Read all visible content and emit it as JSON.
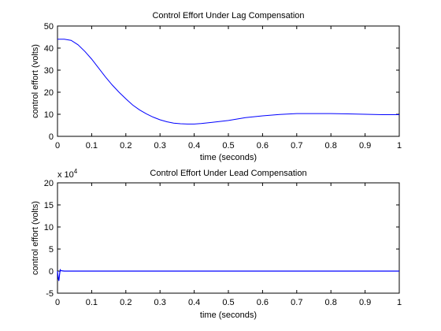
{
  "chart_data": [
    {
      "type": "line",
      "title": "Control Effort Under Lag Compensation",
      "xlabel": "time (seconds)",
      "ylabel": "control effort (volts)",
      "xlim": [
        0,
        1
      ],
      "ylim": [
        0,
        50
      ],
      "xticks": [
        "0",
        "0.1",
        "0.2",
        "0.3",
        "0.4",
        "0.5",
        "0.6",
        "0.7",
        "0.8",
        "0.9",
        "1"
      ],
      "yticks": [
        "0",
        "10",
        "20",
        "30",
        "40",
        "50"
      ],
      "grid": false,
      "line_color": "#0000ff",
      "series": [
        {
          "x": [
            0,
            0.02,
            0.04,
            0.06,
            0.08,
            0.1,
            0.12,
            0.14,
            0.16,
            0.18,
            0.2,
            0.22,
            0.24,
            0.26,
            0.28,
            0.3,
            0.32,
            0.34,
            0.36,
            0.38,
            0.4,
            0.42,
            0.45,
            0.5,
            0.55,
            0.6,
            0.65,
            0.7,
            0.75,
            0.8,
            0.85,
            0.9,
            0.95,
            1.0
          ],
          "y": [
            44,
            44,
            43.5,
            41.5,
            38.5,
            35,
            31,
            27,
            23.3,
            20,
            17,
            14.2,
            12,
            10.2,
            8.7,
            7.5,
            6.6,
            6.0,
            5.7,
            5.6,
            5.6,
            5.8,
            6.3,
            7.2,
            8.5,
            9.3,
            9.9,
            10.3,
            10.3,
            10.3,
            10.2,
            10.0,
            9.8,
            9.8
          ]
        }
      ]
    },
    {
      "type": "line",
      "title": "Control Effort Under Lead Compensation",
      "xlabel": "time (seconds)",
      "ylabel": "control effort (volts)",
      "xlim": [
        0,
        1
      ],
      "ylim": [
        -5,
        20
      ],
      "y_multiplier": "x 10",
      "y_exponent": "4",
      "xticks": [
        "0",
        "0.1",
        "0.2",
        "0.3",
        "0.4",
        "0.5",
        "0.6",
        "0.7",
        "0.8",
        "0.9",
        "1"
      ],
      "yticks": [
        "-5",
        "0",
        "5",
        "10",
        "15",
        "20"
      ],
      "grid": false,
      "line_color": "#0000ff",
      "series": [
        {
          "x": [
            0,
            0.002,
            0.004,
            0.006,
            0.008,
            0.01,
            0.015,
            0.02,
            0.05,
            0.1,
            0.2,
            0.3,
            0.4,
            0.5,
            0.6,
            0.7,
            0.8,
            0.9,
            1.0
          ],
          "y": [
            0,
            -1.5,
            -2.2,
            -0.8,
            0.3,
            0.1,
            0.05,
            0.0,
            0.0,
            0.0,
            0.0,
            0.0,
            0.0,
            0.0,
            0.0,
            0.0,
            0.0,
            0.0,
            0.0
          ]
        }
      ]
    }
  ]
}
